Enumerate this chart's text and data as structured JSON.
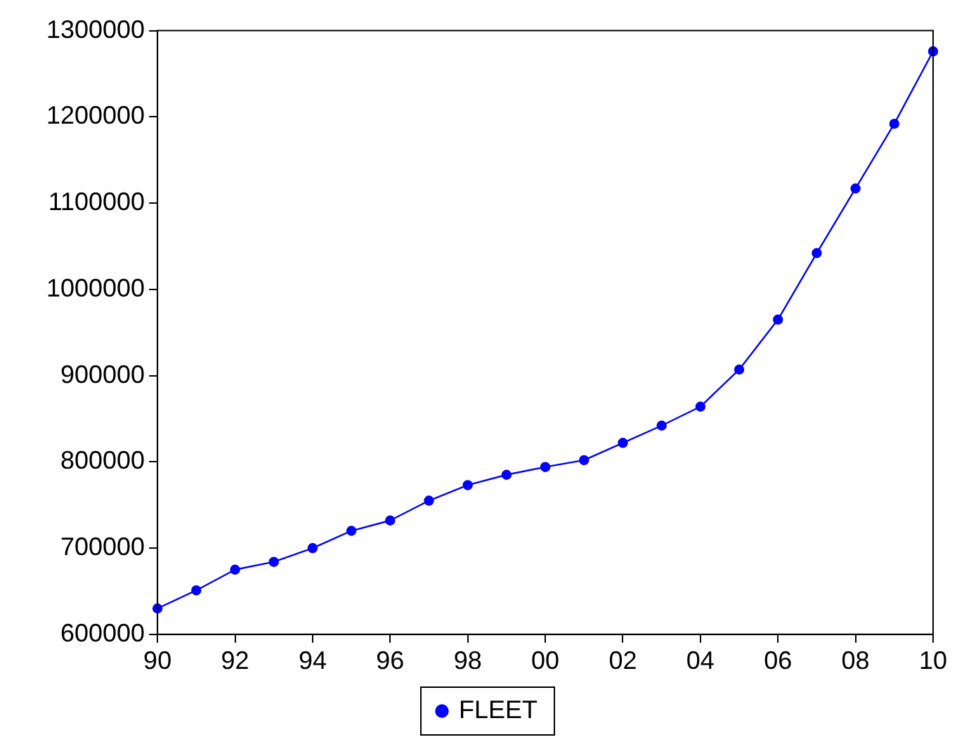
{
  "chart_data": {
    "type": "line",
    "x": [
      1990,
      1991,
      1992,
      1993,
      1994,
      1995,
      1996,
      1997,
      1998,
      1999,
      2000,
      2001,
      2002,
      2003,
      2004,
      2005,
      2006,
      2007,
      2008,
      2009,
      2010
    ],
    "series": [
      {
        "name": "FLEET",
        "color": "#0000ff",
        "values": [
          630000,
          651000,
          675000,
          684000,
          700000,
          720000,
          732000,
          755000,
          773000,
          785000,
          794000,
          802000,
          822000,
          842000,
          864000,
          907000,
          965000,
          1042000,
          1117000,
          1192000,
          1276000
        ]
      }
    ],
    "xlim": [
      1990,
      2010
    ],
    "xticks": [
      {
        "value": 1990,
        "label": "90"
      },
      {
        "value": 1992,
        "label": "92"
      },
      {
        "value": 1994,
        "label": "94"
      },
      {
        "value": 1996,
        "label": "96"
      },
      {
        "value": 1998,
        "label": "98"
      },
      {
        "value": 2000,
        "label": "00"
      },
      {
        "value": 2002,
        "label": "02"
      },
      {
        "value": 2004,
        "label": "04"
      },
      {
        "value": 2006,
        "label": "06"
      },
      {
        "value": 2008,
        "label": "08"
      },
      {
        "value": 2010,
        "label": "10"
      }
    ],
    "ylim": [
      600000,
      1300000
    ],
    "yticks": [
      600000,
      700000,
      800000,
      900000,
      1000000,
      1100000,
      1200000,
      1300000
    ],
    "grid": false,
    "legend": "bottom",
    "marker": "circle",
    "line_style": "solid"
  }
}
